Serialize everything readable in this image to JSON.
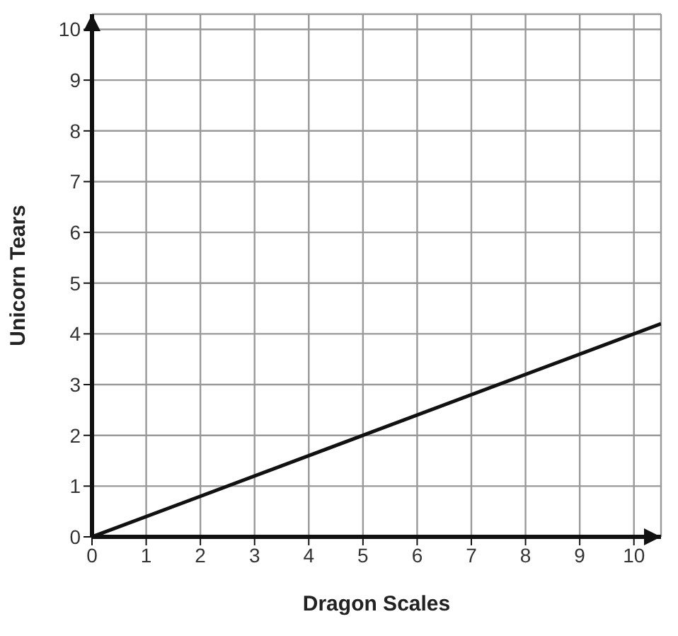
{
  "chart_data": {
    "type": "line",
    "xlabel": "Dragon Scales",
    "ylabel": "Unicorn Tears",
    "x": [
      0,
      5,
      10.5
    ],
    "series": [
      {
        "color": "#111111",
        "values": [
          0,
          2,
          4.2
        ]
      }
    ],
    "xlim": [
      0,
      10.5
    ],
    "ylim": [
      0,
      10.3
    ],
    "xticks": [
      0,
      1,
      2,
      3,
      4,
      5,
      6,
      7,
      8,
      9,
      10
    ],
    "yticks": [
      0,
      1,
      2,
      3,
      4,
      5,
      6,
      7,
      8,
      9,
      10
    ],
    "grid": true,
    "marker": "none",
    "line_style": "solid"
  }
}
